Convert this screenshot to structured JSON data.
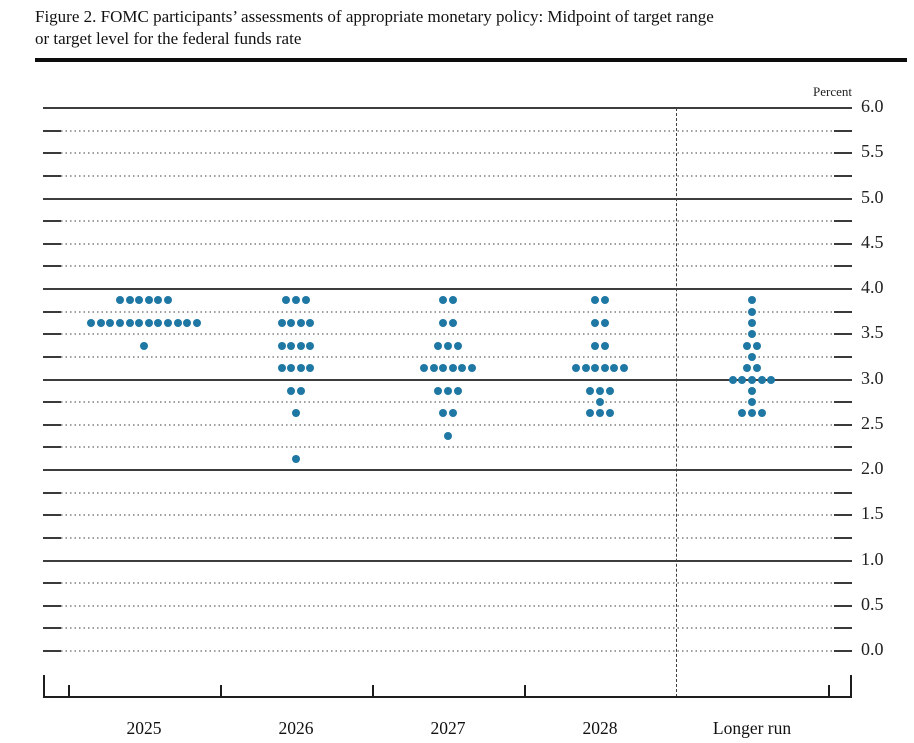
{
  "figure": {
    "title_line1": "Figure 2. FOMC participants’ assessments of appropriate monetary policy: Midpoint of target range",
    "title_line2": "or target level for the federal funds rate"
  },
  "chart_data": {
    "type": "scatter",
    "title": "FOMC participants’ assessments of appropriate monetary policy: Midpoint of target range or target level for the federal funds rate",
    "unit_label": "Percent",
    "xlabel": "",
    "ylabel": "Percent",
    "ylim": [
      0.0,
      6.0
    ],
    "y_minor_step": 0.25,
    "y_label_step": 0.5,
    "grid": "dotted-quarters-solid-integers",
    "legend_position": "none",
    "y_tick_labels": [
      "6.0",
      "5.5",
      "5.0",
      "4.5",
      "4.0",
      "3.5",
      "3.0",
      "2.5",
      "2.0",
      "1.5",
      "1.0",
      "0.5",
      "0.0"
    ],
    "solid_gridlines": [
      6.0,
      5.0,
      4.0,
      3.0,
      2.0,
      1.0
    ],
    "categories": [
      "2025",
      "2026",
      "2027",
      "2028",
      "Longer run"
    ],
    "separator_after_category": "2028",
    "dot_color": "#1f78a4",
    "participants_per_column": 19,
    "series": [
      {
        "name": "2025",
        "dots": [
          {
            "rate": 3.875,
            "count": 6
          },
          {
            "rate": 3.625,
            "count": 12
          },
          {
            "rate": 3.375,
            "count": 1
          }
        ]
      },
      {
        "name": "2026",
        "dots": [
          {
            "rate": 3.875,
            "count": 3
          },
          {
            "rate": 3.625,
            "count": 4
          },
          {
            "rate": 3.375,
            "count": 4
          },
          {
            "rate": 3.125,
            "count": 4
          },
          {
            "rate": 2.875,
            "count": 2
          },
          {
            "rate": 2.625,
            "count": 1
          },
          {
            "rate": 2.125,
            "count": 1
          }
        ]
      },
      {
        "name": "2027",
        "dots": [
          {
            "rate": 3.875,
            "count": 2
          },
          {
            "rate": 3.625,
            "count": 2
          },
          {
            "rate": 3.375,
            "count": 3
          },
          {
            "rate": 3.125,
            "count": 6
          },
          {
            "rate": 2.875,
            "count": 3
          },
          {
            "rate": 2.625,
            "count": 2
          },
          {
            "rate": 2.375,
            "count": 1
          }
        ]
      },
      {
        "name": "2028",
        "dots": [
          {
            "rate": 3.875,
            "count": 2
          },
          {
            "rate": 3.625,
            "count": 2
          },
          {
            "rate": 3.375,
            "count": 2
          },
          {
            "rate": 3.125,
            "count": 6
          },
          {
            "rate": 2.875,
            "count": 3
          },
          {
            "rate": 2.75,
            "count": 1
          },
          {
            "rate": 2.625,
            "count": 3
          }
        ]
      },
      {
        "name": "Longer run",
        "dots": [
          {
            "rate": 3.875,
            "count": 1
          },
          {
            "rate": 3.75,
            "count": 1
          },
          {
            "rate": 3.625,
            "count": 1
          },
          {
            "rate": 3.5,
            "count": 1
          },
          {
            "rate": 3.375,
            "count": 2
          },
          {
            "rate": 3.25,
            "count": 1
          },
          {
            "rate": 3.125,
            "count": 2
          },
          {
            "rate": 3.0,
            "count": 5
          },
          {
            "rate": 2.875,
            "count": 1
          },
          {
            "rate": 2.75,
            "count": 1
          },
          {
            "rate": 2.625,
            "count": 3
          }
        ]
      }
    ]
  }
}
